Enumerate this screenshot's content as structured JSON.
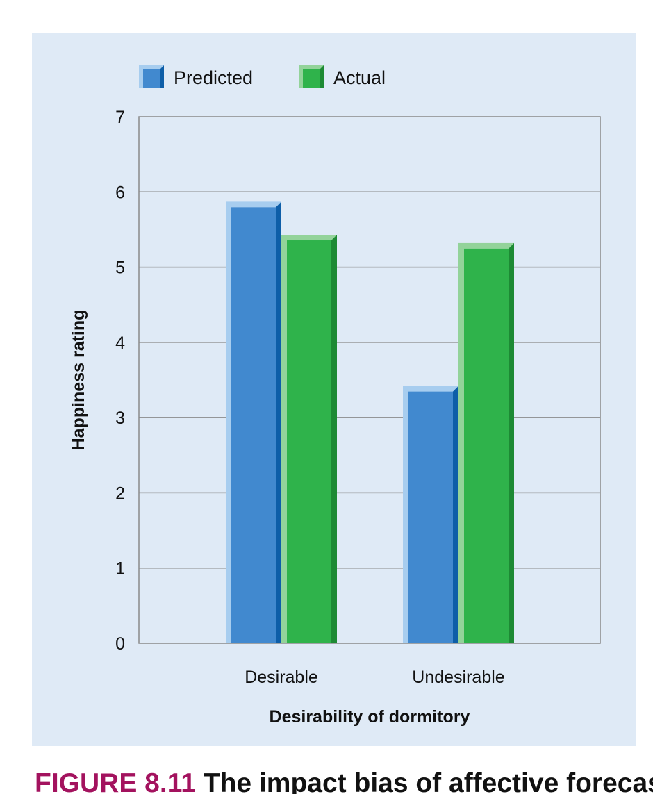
{
  "chart_data": {
    "type": "bar",
    "categories": [
      "Desirable",
      "Undesirable"
    ],
    "series": [
      {
        "name": "Predicted",
        "values": [
          5.87,
          3.42
        ],
        "color": "#4189cf",
        "highlight": "#a7cdef",
        "shade": "#0d5ea8"
      },
      {
        "name": "Actual",
        "values": [
          5.43,
          5.32
        ],
        "color": "#2fb34b",
        "highlight": "#93d39a",
        "shade": "#1d8a34"
      }
    ],
    "xlabel": "Desirability of dormitory",
    "ylabel": "Happiness rating",
    "ylim": [
      0,
      7
    ],
    "yticks": [
      "0",
      "1",
      "2",
      "3",
      "4",
      "5",
      "6",
      "7"
    ],
    "grid": true,
    "legend_position": "top-left"
  },
  "caption": {
    "figure_label": "FIGURE 8.11",
    "text": "The impact bias of affective forecasting"
  },
  "colors": {
    "panel_background": "#dfeaf6",
    "plot_background": "#dfeaf6",
    "gridline": "#8a8a8a",
    "caption_accent": "#a3125e"
  }
}
